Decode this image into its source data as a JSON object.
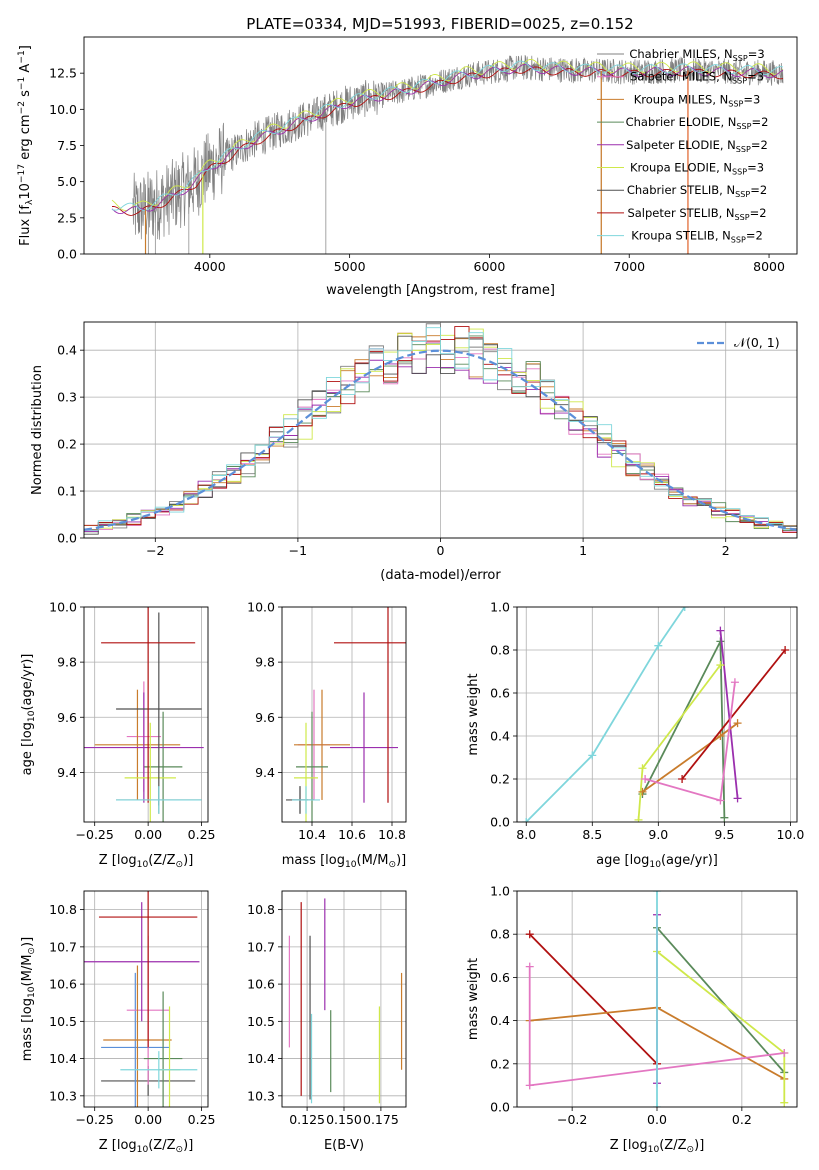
{
  "figure_title": "PLATE=0334, MJD=51993, FIBERID=0025, z=0.152",
  "colors": {
    "chabrier_miles": "#808080",
    "salpeter_miles": "#17becf",
    "kroupa_miles": "#c97c2c",
    "chabrier_elodie": "#5a8a5a",
    "salpeter_elodie": "#9b2fae",
    "kroupa_elodie": "#cfe84a",
    "chabrier_stelib": "#505050",
    "salpeter_stelib": "#b01010",
    "kroupa_stelib": "#7fd6dc",
    "pink": "#e377c2",
    "normal_curve": "#5b8fd9",
    "grid": "#b0b0b0"
  },
  "legend_entries": [
    {
      "label": "Chabrier MILES, N",
      "sub": "SSP",
      "tail": "=3",
      "color": "#808080"
    },
    {
      "label": "Salpeter MILES, N",
      "sub": "SSP",
      "tail": "=3",
      "color": "#e377c2"
    },
    {
      "label": "Kroupa MILES, N",
      "sub": "SSP",
      "tail": "=3",
      "color": "#c97c2c"
    },
    {
      "label": "Chabrier ELODIE, N",
      "sub": "SSP",
      "tail": "=2",
      "color": "#5a8a5a"
    },
    {
      "label": "Salpeter ELODIE, N",
      "sub": "SSP",
      "tail": "=2",
      "color": "#9b2fae"
    },
    {
      "label": "Kroupa ELODIE, N",
      "sub": "SSP",
      "tail": "=3",
      "color": "#cfe84a"
    },
    {
      "label": "Chabrier STELIB, N",
      "sub": "SSP",
      "tail": "=2",
      "color": "#505050"
    },
    {
      "label": "Salpeter STELIB, N",
      "sub": "SSP",
      "tail": "=2",
      "color": "#b01010"
    },
    {
      "label": "Kroupa STELIB, N",
      "sub": "SSP",
      "tail": "=2",
      "color": "#7fd6dc"
    }
  ],
  "chart_data": [
    {
      "id": "spectrum",
      "type": "line",
      "xlabel": "wavelength [Angstrom, rest frame]",
      "ylabel_parts": [
        "Flux [f",
        "λ",
        "10",
        "−17",
        " erg cm",
        "−2",
        " s",
        "−1",
        " A",
        "−1",
        "]"
      ],
      "xlim": [
        3100,
        8200
      ],
      "ylim": [
        0,
        15
      ],
      "xticks": [
        4000,
        5000,
        6000,
        7000,
        8000
      ],
      "yticks": [
        0.0,
        2.5,
        5.0,
        7.5,
        10.0,
        12.5
      ],
      "ytick_labels": [
        "0.0",
        "2.5",
        "5.0",
        "7.5",
        "10.0",
        "12.5"
      ],
      "grid": false,
      "legend": "top-right",
      "observed_range": [
        3450,
        8100
      ],
      "model_anchor_x": [
        3300,
        3500,
        3700,
        3900,
        4000,
        4300,
        4600,
        5000,
        5400,
        5800,
        6200,
        6600,
        7000,
        7400,
        7800,
        8100
      ],
      "model_anchor_y": [
        3.2,
        3.0,
        3.8,
        5.0,
        6.0,
        7.8,
        9.0,
        10.5,
        11.3,
        12.3,
        12.9,
        12.7,
        12.6,
        12.7,
        12.6,
        12.5
      ]
    },
    {
      "id": "residuals",
      "type": "histogram",
      "xlabel": "(data-model)/error",
      "ylabel": "Normed distribution",
      "xlim": [
        -2.5,
        2.5
      ],
      "ylim": [
        0,
        0.46
      ],
      "xticks": [
        -2,
        -1,
        0,
        1,
        2
      ],
      "xtick_labels": [
        "−2",
        "−1",
        "0",
        "1",
        "2"
      ],
      "yticks": [
        0.0,
        0.1,
        0.2,
        0.3,
        0.4
      ],
      "ytick_labels": [
        "0.0",
        "0.1",
        "0.2",
        "0.3",
        "0.4"
      ],
      "grid": true,
      "legend": "top-right",
      "legend_label": "𝒩(0, 1)",
      "bin_width": 0.1
    },
    {
      "id": "age_vs_Z",
      "type": "errorbar",
      "xlabel_parts": [
        "Z [log",
        "10",
        "(Z/Z",
        "⊙",
        ")]"
      ],
      "ylabel_parts": [
        "age  [log",
        "10",
        "(age/yr)]"
      ],
      "xlim": [
        -0.3,
        0.28
      ],
      "ylim": [
        9.22,
        10.0
      ],
      "xticks": [
        -0.25,
        0.0,
        0.25
      ],
      "xtick_labels": [
        "−0.25",
        "0.00",
        "0.25"
      ],
      "yticks": [
        9.4,
        9.6,
        9.8,
        10.0
      ],
      "ytick_labels": [
        "9.4",
        "9.6",
        "9.8",
        "10.0"
      ],
      "grid": true,
      "points": [
        {
          "x": 0.05,
          "xerr": 0.2,
          "y": 9.3,
          "yerr": 0.05,
          "color": "#808080"
        },
        {
          "x": -0.02,
          "xerr": 0.08,
          "y": 9.53,
          "yerr": 0.2,
          "color": "#e377c2"
        },
        {
          "x": -0.05,
          "xerr": 0.2,
          "y": 9.5,
          "yerr": 0.2,
          "color": "#c97c2c"
        },
        {
          "x": 0.07,
          "xerr": 0.09,
          "y": 9.42,
          "yerr": 0.2,
          "color": "#5a8a5a"
        },
        {
          "x": -0.02,
          "xerr": 0.28,
          "y": 9.49,
          "yerr": 0.2,
          "color": "#9b2fae"
        },
        {
          "x": 0.01,
          "xerr": 0.12,
          "y": 9.38,
          "yerr": 0.2,
          "color": "#cfe84a"
        },
        {
          "x": 0.05,
          "xerr": 0.2,
          "y": 9.63,
          "yerr": 0.35,
          "color": "#505050"
        },
        {
          "x": 0.0,
          "xerr": 0.22,
          "y": 9.87,
          "yerr": 0.58,
          "color": "#b01010"
        },
        {
          "x": 0.05,
          "xerr": 0.2,
          "y": 9.3,
          "yerr": 0.05,
          "color": "#7fd6dc"
        }
      ]
    },
    {
      "id": "age_vs_mass",
      "type": "errorbar",
      "xlabel_parts": [
        "mass [log",
        "10",
        "(M/M",
        "⊙",
        ")]"
      ],
      "ylabel_parts": [
        "",
        "",
        ""
      ],
      "xlim": [
        10.25,
        10.87
      ],
      "ylim": [
        9.22,
        10.0
      ],
      "xticks": [
        10.4,
        10.6,
        10.8
      ],
      "xtick_labels": [
        "10.4",
        "10.6",
        "10.8"
      ],
      "yticks": [
        9.4,
        9.6,
        9.8,
        10.0
      ],
      "ytick_labels": [
        "9.4",
        "9.6",
        "9.8",
        "10.0"
      ],
      "grid": true,
      "points": [
        {
          "x": 10.34,
          "xerr": 0.04,
          "y": 9.3,
          "yerr": 0.05,
          "color": "#808080"
        },
        {
          "x": 10.41,
          "xerr": 0.08,
          "y": 9.5,
          "yerr": 0.2,
          "color": "#e377c2"
        },
        {
          "x": 10.45,
          "xerr": 0.14,
          "y": 9.5,
          "yerr": 0.2,
          "color": "#c97c2c"
        },
        {
          "x": 10.4,
          "xerr": 0.08,
          "y": 9.42,
          "yerr": 0.2,
          "color": "#5a8a5a"
        },
        {
          "x": 10.66,
          "xerr": 0.17,
          "y": 9.49,
          "yerr": 0.2,
          "color": "#9b2fae"
        },
        {
          "x": 10.37,
          "xerr": 0.06,
          "y": 9.38,
          "yerr": 0.2,
          "color": "#cfe84a"
        },
        {
          "x": 10.34,
          "xerr": 0.07,
          "y": 9.3,
          "yerr": 0.05,
          "color": "#505050"
        },
        {
          "x": 10.78,
          "xerr": 0.27,
          "y": 9.87,
          "yerr": 0.58,
          "color": "#b01010"
        },
        {
          "x": 10.37,
          "xerr": 0.07,
          "y": 9.3,
          "yerr": 0.05,
          "color": "#7fd6dc"
        }
      ]
    },
    {
      "id": "weight_vs_age",
      "type": "line",
      "xlabel_parts": [
        "age  [log",
        "10",
        "(age/yr)]"
      ],
      "ylabel": "mass weight",
      "xlim": [
        7.93,
        10.05
      ],
      "ylim": [
        0,
        1
      ],
      "xticks": [
        8.0,
        8.5,
        9.0,
        9.5,
        10.0
      ],
      "xtick_labels": [
        "8.0",
        "8.5",
        "9.0",
        "9.5",
        "10.0"
      ],
      "yticks": [
        0.0,
        0.2,
        0.4,
        0.6,
        0.8,
        1.0
      ],
      "ytick_labels": [
        "0.0",
        "0.2",
        "0.4",
        "0.6",
        "0.8",
        "1.0"
      ],
      "grid": true,
      "series": [
        {
          "color": "#7fd6dc",
          "x": [
            8.0,
            8.5,
            9.0,
            9.2
          ],
          "y": [
            0.0,
            0.31,
            0.82,
            1.0
          ]
        },
        {
          "color": "#5a8a5a",
          "x": [
            8.88,
            9.47,
            9.5
          ],
          "y": [
            0.13,
            0.84,
            0.02
          ]
        },
        {
          "color": "#9b2fae",
          "x": [
            9.47,
            9.6
          ],
          "y": [
            0.89,
            0.11
          ]
        },
        {
          "color": "#cfe84a",
          "x": [
            8.85,
            8.88,
            9.47
          ],
          "y": [
            0.01,
            0.25,
            0.73
          ]
        },
        {
          "color": "#c97c2c",
          "x": [
            8.88,
            9.47,
            9.6
          ],
          "y": [
            0.14,
            0.4,
            0.46
          ]
        },
        {
          "color": "#b01010",
          "x": [
            9.18,
            9.96
          ],
          "y": [
            0.2,
            0.8
          ]
        },
        {
          "color": "#e377c2",
          "x": [
            8.9,
            9.47,
            9.58
          ],
          "y": [
            0.2,
            0.1,
            0.65
          ]
        }
      ]
    },
    {
      "id": "mass_vs_Z",
      "type": "errorbar",
      "xlabel_parts": [
        "Z [log",
        "10",
        "(Z/Z",
        "⊙",
        ")]"
      ],
      "ylabel_parts": [
        "mass [log",
        "10",
        "(M/M",
        "⊙",
        ")]"
      ],
      "xlim": [
        -0.3,
        0.28
      ],
      "ylim": [
        10.27,
        10.85
      ],
      "xticks": [
        -0.25,
        0.0,
        0.25
      ],
      "xtick_labels": [
        "−0.25",
        "0.00",
        "0.25"
      ],
      "yticks": [
        10.3,
        10.4,
        10.5,
        10.6,
        10.7,
        10.8
      ],
      "ytick_labels": [
        "10.3",
        "10.4",
        "10.5",
        "10.6",
        "10.7",
        "10.8"
      ],
      "grid": true,
      "points": [
        {
          "x": 0.0,
          "xerr": 0.22,
          "y": 10.34,
          "yerr": 0.04,
          "color": "#505050"
        },
        {
          "x": -0.06,
          "xerr": 0.16,
          "y": 10.43,
          "yerr": 0.2,
          "color": "#5a8fd9"
        },
        {
          "x": 0.0,
          "xerr": 0.1,
          "y": 10.53,
          "yerr": 0.2,
          "color": "#e377c2"
        },
        {
          "x": -0.05,
          "xerr": 0.16,
          "y": 10.45,
          "yerr": 0.2,
          "color": "#c97c2c"
        },
        {
          "x": 0.07,
          "xerr": 0.09,
          "y": 10.4,
          "yerr": 0.18,
          "color": "#5a8a5a"
        },
        {
          "x": -0.03,
          "xerr": 0.27,
          "y": 10.66,
          "yerr": 0.16,
          "color": "#9b2fae"
        },
        {
          "x": 0.1,
          "xerr": 0.05,
          "y": 10.37,
          "yerr": 0.17,
          "color": "#cfe84a"
        },
        {
          "x": 0.0,
          "xerr": 0.23,
          "y": 10.78,
          "yerr": 0.35,
          "color": "#b01010"
        },
        {
          "x": 0.05,
          "xerr": 0.18,
          "y": 10.37,
          "yerr": 0.05,
          "color": "#7fd6dc"
        }
      ]
    },
    {
      "id": "mass_vs_ebv",
      "type": "errorbar",
      "xlabel": "E(B-V)",
      "xlim": [
        0.108,
        0.192
      ],
      "ylim": [
        10.27,
        10.85
      ],
      "xticks": [
        0.125,
        0.15,
        0.175
      ],
      "xtick_labels": [
        "0.125",
        "0.150",
        "0.175"
      ],
      "yticks": [
        10.3,
        10.4,
        10.5,
        10.6,
        10.7,
        10.8
      ],
      "ytick_labels": [
        "10.3",
        "10.4",
        "10.5",
        "10.6",
        "10.7",
        "10.8"
      ],
      "grid": true,
      "points": [
        {
          "x": 0.113,
          "y": 10.58,
          "yerr": 0.15,
          "color": "#e377c2"
        },
        {
          "x": 0.121,
          "y": 10.56,
          "yerr": 0.26,
          "color": "#b01010"
        },
        {
          "x": 0.127,
          "y": 10.51,
          "yerr": 0.22,
          "color": "#505050"
        },
        {
          "x": 0.128,
          "y": 10.4,
          "yerr": 0.12,
          "color": "#7fd6dc"
        },
        {
          "x": 0.137,
          "y": 10.68,
          "yerr": 0.15,
          "color": "#9b2fae"
        },
        {
          "x": 0.141,
          "y": 10.42,
          "yerr": 0.11,
          "color": "#5a8a5a"
        },
        {
          "x": 0.174,
          "y": 10.41,
          "yerr": 0.13,
          "color": "#cfe84a"
        },
        {
          "x": 0.189,
          "y": 10.5,
          "yerr": 0.13,
          "color": "#c97c2c"
        }
      ]
    },
    {
      "id": "weight_vs_Z",
      "type": "line",
      "xlabel_parts": [
        "Z [log",
        "10",
        "(Z/Z",
        "⊙",
        ")]"
      ],
      "ylabel": "mass weight",
      "xlim": [
        -0.33,
        0.33
      ],
      "ylim": [
        0,
        1
      ],
      "xticks": [
        -0.2,
        0.0,
        0.2
      ],
      "xtick_labels": [
        "−0.2",
        "0.0",
        "0.2"
      ],
      "yticks": [
        0.0,
        0.2,
        0.4,
        0.6,
        0.8,
        1.0
      ],
      "ytick_labels": [
        "0.0",
        "0.2",
        "0.4",
        "0.6",
        "0.8",
        "1.0"
      ],
      "grid": true,
      "series": [
        {
          "color": "#b01010",
          "x": [
            -0.3,
            0.0
          ],
          "y": [
            0.8,
            0.2
          ]
        },
        {
          "color": "#c97c2c",
          "x": [
            -0.3,
            0.0,
            0.3
          ],
          "y": [
            0.4,
            0.46,
            0.13
          ]
        },
        {
          "color": "#5a8a5a",
          "x": [
            0.0,
            0.3
          ],
          "y": [
            0.83,
            0.16
          ]
        },
        {
          "color": "#cfe84a",
          "x": [
            0.0,
            0.3,
            0.3
          ],
          "y": [
            0.72,
            0.25,
            0.02
          ]
        },
        {
          "color": "#e377c2",
          "x": [
            -0.3,
            -0.3,
            0.3
          ],
          "y": [
            0.65,
            0.1,
            0.25
          ]
        },
        {
          "color": "#9b2fae",
          "x": [
            0.0,
            0.0
          ],
          "y": [
            0.89,
            0.11
          ]
        },
        {
          "color": "#7fd6dc",
          "x": [
            0.0,
            0.0
          ],
          "y": [
            0.0,
            1.0
          ]
        }
      ]
    }
  ]
}
